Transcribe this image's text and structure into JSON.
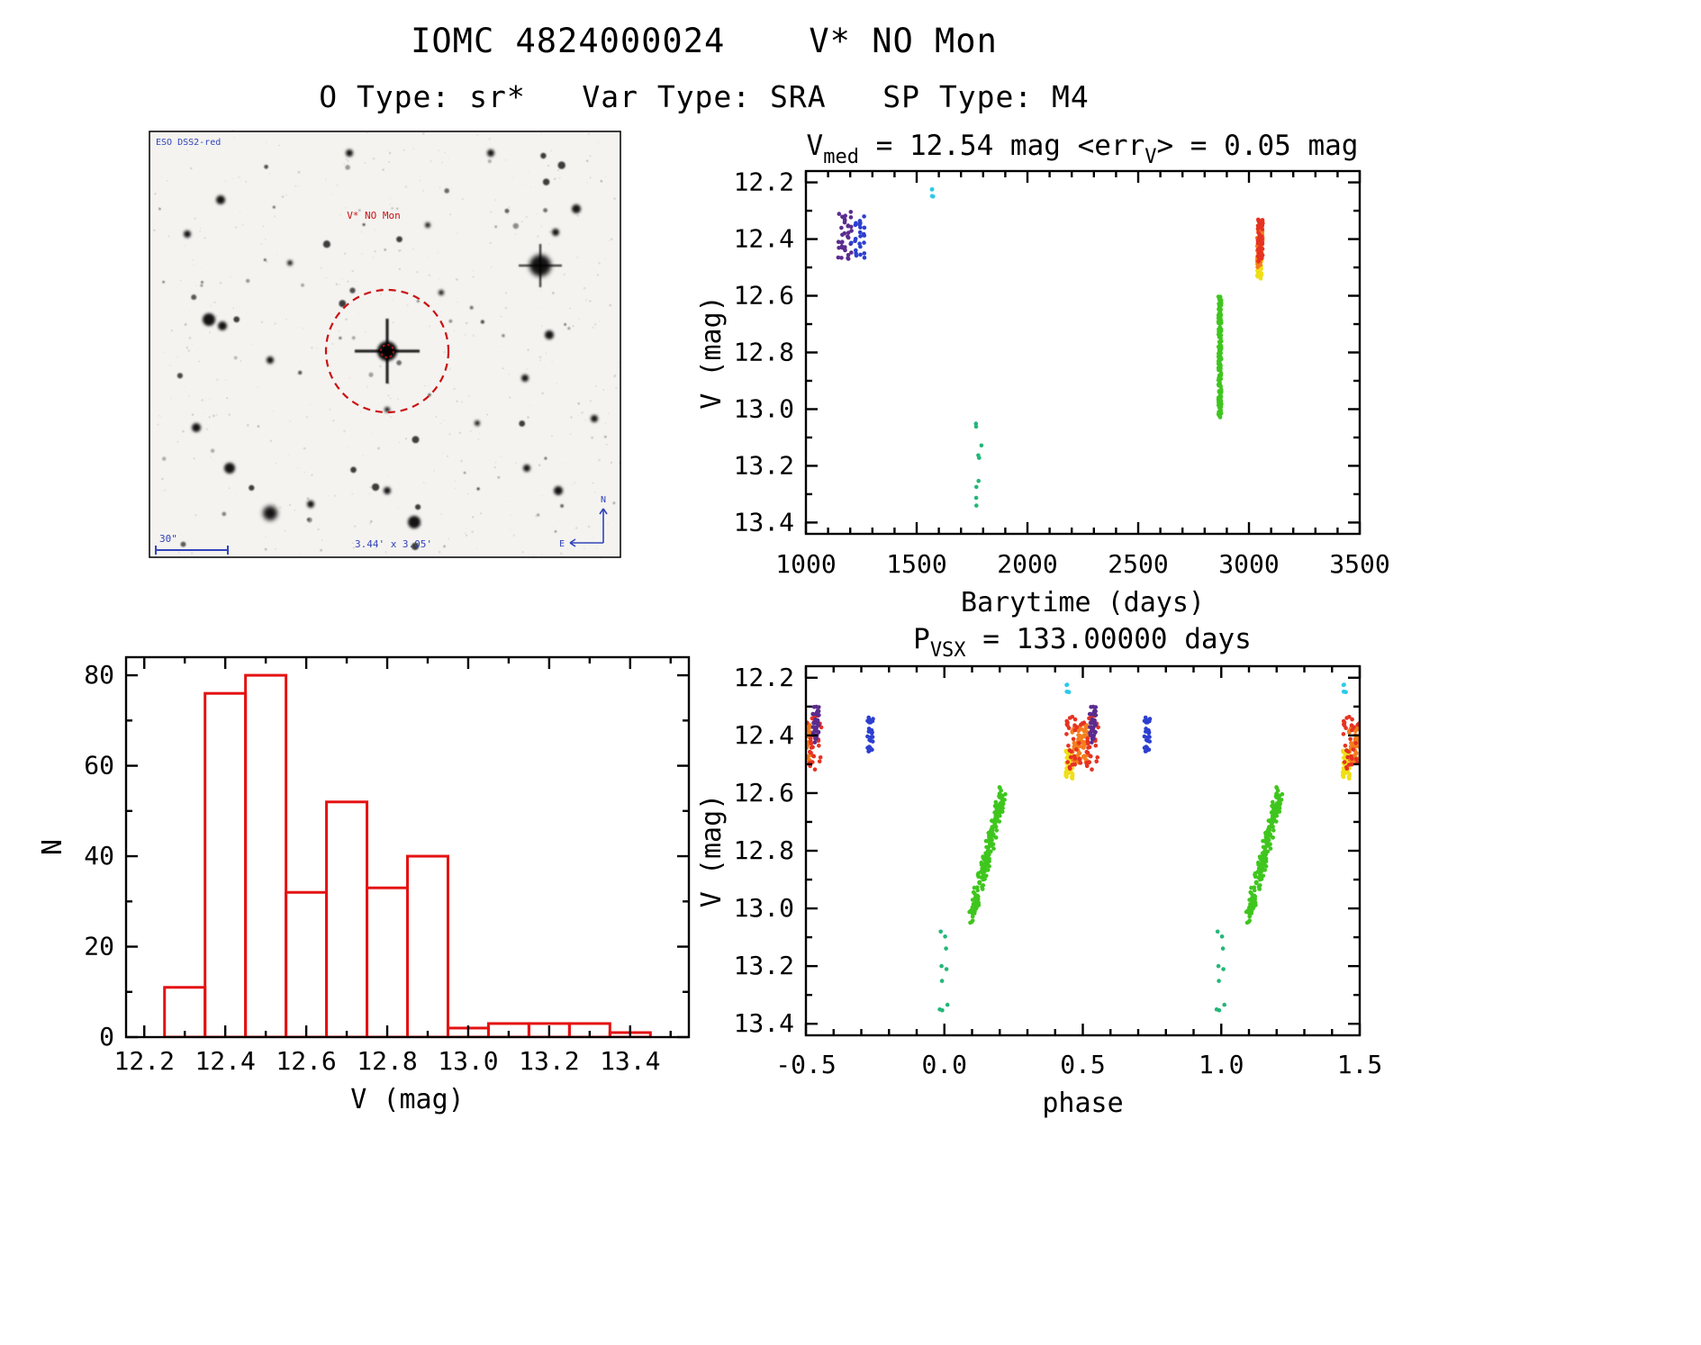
{
  "page": {
    "title": "IOMC 4824000024    V* NO Mon",
    "subtitle": "O Type: sr*   Var Type: SRA   SP Type: M4"
  },
  "finder": {
    "survey": "ESO DSS2-red",
    "target": "V* NO Mon",
    "scale": "30\"",
    "fov": "3.44' x 3.05'",
    "north": "N",
    "east": "E",
    "annot_color": "#3344bb",
    "marker_color": "#cc1111"
  },
  "chart_data": [
    {
      "id": "lightcurve",
      "type": "scatter",
      "title": [
        {
          "t": "V"
        },
        {
          "t": "med",
          "sub": true
        },
        {
          "t": " = 12.54 mag <err"
        },
        {
          "t": "V",
          "sub": true
        },
        {
          "t": "> = 0.05 mag"
        }
      ],
      "x_axis": {
        "label": "Barytime (days)",
        "lim": [
          1000,
          3500
        ],
        "minor": 100,
        "ticks": [
          {
            "v": 1000,
            "label": "1000"
          },
          {
            "v": 1500,
            "label": "1500"
          },
          {
            "v": 2000,
            "label": "2000"
          },
          {
            "v": 2500,
            "label": "2500"
          },
          {
            "v": 3000,
            "label": "3000"
          },
          {
            "v": 3500,
            "label": "3500"
          }
        ]
      },
      "y_axis": {
        "label": "V (mag)",
        "lim": [
          12.16,
          13.44
        ],
        "minor": 0.1,
        "ticks": [
          {
            "v": 12.2,
            "label": "12.2"
          },
          {
            "v": 12.4,
            "label": "12.4"
          },
          {
            "v": 12.6,
            "label": "12.6"
          },
          {
            "v": 12.8,
            "label": "12.8"
          },
          {
            "v": 13.0,
            "label": "13.0"
          },
          {
            "v": 13.2,
            "label": "13.2"
          },
          {
            "v": 13.4,
            "label": "13.4"
          }
        ]
      },
      "clusters": [
        {
          "name": "epoch-purple",
          "color": "#5b2c8f",
          "x": [
            1148,
            1204
          ],
          "y": [
            12.3,
            12.47
          ],
          "n": 34,
          "cols": 5
        },
        {
          "name": "epoch-blue",
          "color": "#2c3fd0",
          "x": [
            1206,
            1262
          ],
          "y": [
            12.32,
            12.47
          ],
          "n": 26,
          "cols": 4
        },
        {
          "name": "epoch-cyan",
          "color": "#2ec9e8",
          "x": [
            1564,
            1576
          ],
          "y": [
            12.22,
            12.26
          ],
          "n": 5
        },
        {
          "name": "epoch-teal",
          "color": "#23b778",
          "x": [
            1766,
            1794
          ],
          "y": [
            13.04,
            13.36
          ],
          "n": 9
        },
        {
          "name": "epoch-green",
          "color": "#3fc61e",
          "x": [
            2862,
            2876
          ],
          "y": [
            12.6,
            13.03
          ],
          "n": 190
        },
        {
          "name": "epoch-yellow",
          "color": "#efdf18",
          "x": [
            3036,
            3058
          ],
          "y": [
            12.46,
            12.54
          ],
          "n": 45
        },
        {
          "name": "epoch-orange",
          "color": "#f57d1d",
          "x": [
            3036,
            3062
          ],
          "y": [
            12.37,
            12.5
          ],
          "n": 70
        },
        {
          "name": "epoch-red",
          "color": "#e63322",
          "x": [
            3040,
            3064
          ],
          "y": [
            12.33,
            12.48
          ],
          "n": 60
        }
      ]
    },
    {
      "id": "histogram",
      "type": "bar",
      "x_axis": {
        "label": "V (mag)",
        "lim": [
          12.155,
          13.545
        ],
        "minor": 0.1,
        "ticks": [
          {
            "v": 12.2,
            "label": "12.2"
          },
          {
            "v": 12.4,
            "label": "12.4"
          },
          {
            "v": 12.6,
            "label": "12.6"
          },
          {
            "v": 12.8,
            "label": "12.8"
          },
          {
            "v": 13.0,
            "label": "13.0"
          },
          {
            "v": 13.2,
            "label": "13.2"
          },
          {
            "v": 13.4,
            "label": "13.4"
          }
        ]
      },
      "y_axis": {
        "label": "N",
        "lim": [
          84,
          0
        ],
        "minor": 10,
        "ticks": [
          {
            "v": 0,
            "label": "0"
          },
          {
            "v": 20,
            "label": "20"
          },
          {
            "v": 40,
            "label": "40"
          },
          {
            "v": 60,
            "label": "60"
          },
          {
            "v": 80,
            "label": "80"
          }
        ]
      },
      "bars": {
        "start": 12.25,
        "width": 0.1,
        "counts": [
          11,
          76,
          80,
          32,
          52,
          33,
          40,
          2,
          3,
          3,
          3,
          1
        ],
        "color": "#e51212"
      }
    },
    {
      "id": "phase",
      "type": "scatter",
      "title": [
        {
          "t": "P"
        },
        {
          "t": "VSX",
          "sub": true
        },
        {
          "t": " = 133.00000 days"
        }
      ],
      "x_axis": {
        "label": "phase",
        "lim": [
          -0.5,
          1.5
        ],
        "minor": 0.1,
        "ticks": [
          {
            "v": -0.5,
            "label": "-0.5"
          },
          {
            "v": 0.0,
            "label": "0.0"
          },
          {
            "v": 0.5,
            "label": "0.5"
          },
          {
            "v": 1.0,
            "label": "1.0"
          },
          {
            "v": 1.5,
            "label": "1.5"
          }
        ]
      },
      "y_axis": {
        "label": "V (mag)",
        "lim": [
          12.16,
          13.44
        ],
        "minor": 0.1,
        "ticks": [
          {
            "v": 12.2,
            "label": "12.2"
          },
          {
            "v": 12.4,
            "label": "12.4"
          },
          {
            "v": 12.6,
            "label": "12.6"
          },
          {
            "v": 12.8,
            "label": "12.8"
          },
          {
            "v": 13.0,
            "label": "13.0"
          },
          {
            "v": 13.2,
            "label": "13.2"
          },
          {
            "v": 13.4,
            "label": "13.4"
          }
        ]
      },
      "repeat": [
        -1,
        0,
        1
      ],
      "clusters": [
        {
          "name": "ph-teal",
          "color": "#23b778",
          "x": [
            -0.018,
            0.018
          ],
          "y": [
            13.04,
            13.36
          ],
          "n": 9
        },
        {
          "name": "ph-green",
          "color": "#3fc61e",
          "x": [
            0.1,
            0.21
          ],
          "y": [
            12.6,
            13.03
          ],
          "n": 190,
          "slant": true,
          "jx": 0.022,
          "jy": 0.06
        },
        {
          "name": "ph-cyan",
          "color": "#2ec9e8",
          "x": [
            0.435,
            0.452
          ],
          "y": [
            12.22,
            12.26
          ],
          "n": 5
        },
        {
          "name": "ph-yellow",
          "color": "#efdf18",
          "x": [
            0.438,
            0.465
          ],
          "y": [
            12.45,
            12.55
          ],
          "n": 45
        },
        {
          "name": "ph-orange",
          "color": "#f57d1d",
          "x": [
            0.462,
            0.525
          ],
          "y": [
            12.36,
            12.5
          ],
          "n": 70
        },
        {
          "name": "ph-red",
          "color": "#e63322",
          "x": [
            0.44,
            0.56
          ],
          "y": [
            12.33,
            12.52
          ],
          "n": 60
        },
        {
          "name": "ph-purple",
          "color": "#5b2c8f",
          "x": [
            0.524,
            0.548
          ],
          "y": [
            12.3,
            12.43
          ],
          "n": 34
        },
        {
          "name": "ph-blue",
          "color": "#2c3fd0",
          "x": [
            0.722,
            0.744
          ],
          "y": [
            12.33,
            12.46
          ],
          "n": 26
        }
      ]
    }
  ]
}
